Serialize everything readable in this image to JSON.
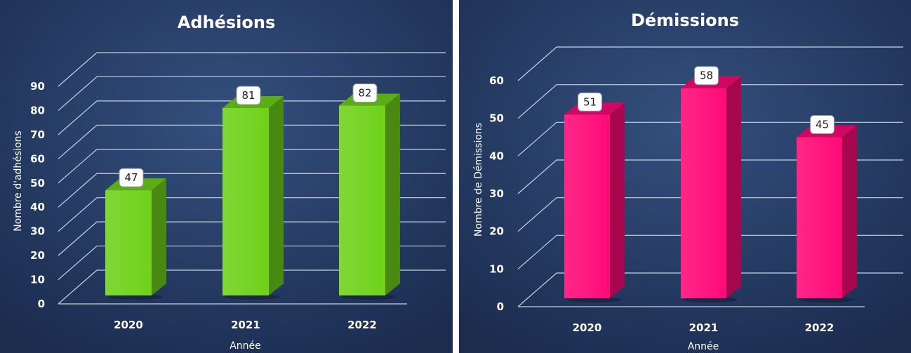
{
  "chart_data": [
    {
      "type": "bar",
      "title": "Adhésions",
      "categories": [
        "2020",
        "2021",
        "2022"
      ],
      "values": [
        47,
        81,
        82
      ],
      "xlabel": "Année",
      "ylabel": "Nombre d'adhésions",
      "ylim": [
        0,
        90
      ],
      "yticks": [
        0,
        10,
        20,
        30,
        40,
        50,
        60,
        70,
        80,
        90
      ],
      "bar_color": "#6fd21a",
      "grid": true,
      "data_labels": [
        "47",
        "81",
        "82"
      ]
    },
    {
      "type": "bar",
      "title": "Démissions",
      "categories": [
        "2020",
        "2021",
        "2022"
      ],
      "values": [
        51,
        58,
        45
      ],
      "xlabel": "Année",
      "ylabel": "Nombre de Démissions",
      "ylim": [
        0,
        60
      ],
      "yticks": [
        0,
        10,
        20,
        30,
        40,
        50,
        60
      ],
      "bar_color": "#ff0a78",
      "grid": true,
      "data_labels": [
        "51",
        "58",
        "45"
      ]
    }
  ]
}
